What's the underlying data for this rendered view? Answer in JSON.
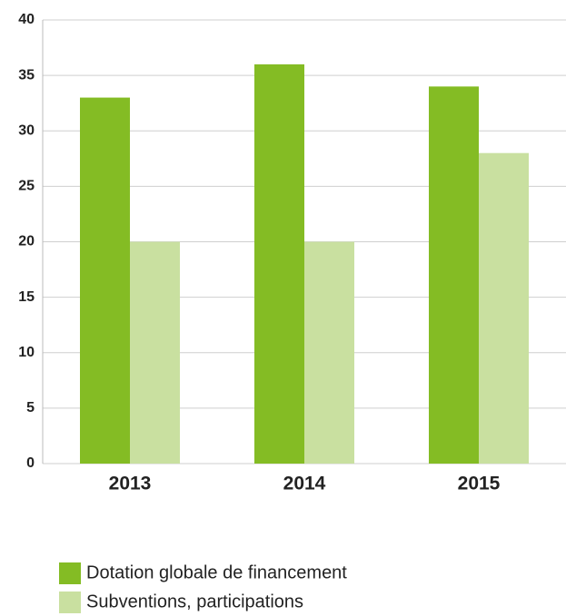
{
  "chart_data": {
    "type": "bar",
    "categories": [
      "2013",
      "2014",
      "2015"
    ],
    "series": [
      {
        "name": "Dotation globale de financement",
        "color": "#84bc24",
        "values": [
          33,
          36,
          34
        ]
      },
      {
        "name": "Subventions, participations",
        "color": "#c9e0a0",
        "values": [
          20,
          20,
          28
        ]
      }
    ],
    "ylim": [
      0,
      40
    ],
    "yticks": [
      0,
      5,
      10,
      15,
      20,
      25,
      30,
      35,
      40
    ],
    "grid": true,
    "legend": "bottom"
  }
}
